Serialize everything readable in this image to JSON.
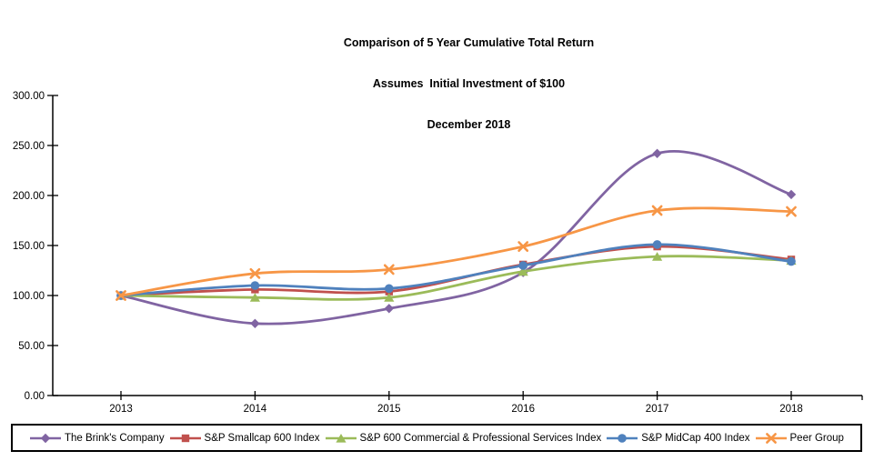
{
  "title": {
    "line1": "Comparison of 5 Year Cumulative Total Return",
    "line2": "Assumes  Initial Investment of $100",
    "line3": "December 2018"
  },
  "chart_data": {
    "type": "line",
    "title": "Comparison of 5 Year Cumulative Total Return",
    "subtitle": "Assumes  Initial Investment of $100",
    "date_label": "December 2018",
    "categories": [
      "2013",
      "2014",
      "2015",
      "2016",
      "2017",
      "2018"
    ],
    "series": [
      {
        "name": "The Brink's Company",
        "color": "#8064A2",
        "marker": "diamond",
        "values": [
          100.0,
          72.0,
          87.0,
          123.0,
          242.0,
          201.0
        ]
      },
      {
        "name": "S&P Smallcap 600 Index",
        "color": "#C0504D",
        "marker": "square",
        "values": [
          100.0,
          106.0,
          104.0,
          131.0,
          149.0,
          136.0
        ]
      },
      {
        "name": "S&P 600 Commercial & Professional Services Index",
        "color": "#9BBB59",
        "marker": "triangle",
        "values": [
          100.0,
          98.0,
          98.0,
          124.0,
          139.0,
          135.0
        ]
      },
      {
        "name": "S&P MidCap 400 Index",
        "color": "#4F81BD",
        "marker": "circle",
        "values": [
          100.0,
          110.0,
          107.0,
          130.0,
          151.0,
          134.0
        ]
      },
      {
        "name": "Peer Group",
        "color": "#F79646",
        "marker": "x",
        "values": [
          100.0,
          122.0,
          126.0,
          149.0,
          185.0,
          184.0
        ]
      }
    ],
    "y_ticks": [
      "0.00",
      "50.00",
      "100.00",
      "150.00",
      "200.00",
      "250.00",
      "300.00"
    ],
    "ylim": [
      0,
      300
    ],
    "xlabel": "",
    "ylabel": "",
    "grid": false,
    "line_style": "smooth",
    "legend_position": "bottom",
    "axis_color": "#000000"
  }
}
